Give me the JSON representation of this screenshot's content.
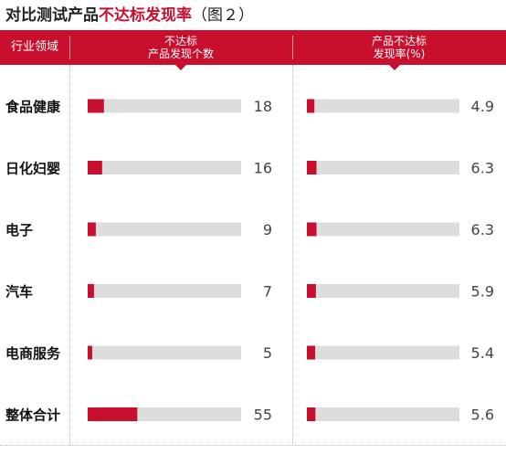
{
  "title": {
    "prefix": "对比测试产品",
    "highlight": "不达标发现率",
    "suffix": "（图２）"
  },
  "header": {
    "col1": "行业领域",
    "col2_line1": "不达标",
    "col2_line2": "产品发现个数",
    "col3_line1": "产品不达标",
    "col3_line2": "发现率(%)"
  },
  "colors": {
    "accent": "#c8102e",
    "track": "#dddddd"
  },
  "chart_data": [
    {
      "type": "bar",
      "orientation": "horizontal",
      "title": "不达标产品发现个数",
      "categories": [
        "食品健康",
        "日化妇婴",
        "电子",
        "汽车",
        "电商服务",
        "整体合计"
      ],
      "values": [
        18,
        16,
        9,
        7,
        5,
        55
      ],
      "value_labels": [
        "18",
        "16",
        "9",
        "7",
        "5",
        "55"
      ],
      "xlim": [
        0,
        170
      ]
    },
    {
      "type": "bar",
      "orientation": "horizontal",
      "title": "产品不达标发现率(%)",
      "categories": [
        "食品健康",
        "日化妇婴",
        "电子",
        "汽车",
        "电商服务",
        "整体合计"
      ],
      "values": [
        4.9,
        6.3,
        6.3,
        5.9,
        5.4,
        5.6
      ],
      "value_labels": [
        "4.9",
        "6.3",
        "6.3",
        "5.9",
        "5.4",
        "5.6"
      ],
      "xlim": [
        0,
        100
      ]
    }
  ]
}
